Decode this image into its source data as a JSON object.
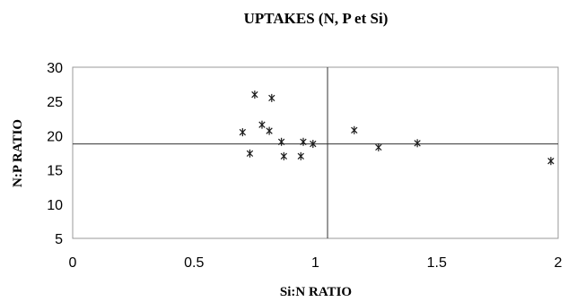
{
  "chart_data": {
    "type": "scatter",
    "title": "UPTAKES (N, P et Si)",
    "xlabel": "Si:N RATIO",
    "ylabel": "N:P RATIO",
    "xlim": [
      0,
      2
    ],
    "ylim": [
      5,
      30
    ],
    "xticks": [
      "0",
      "0.5",
      "1",
      "1.5",
      "2"
    ],
    "yticks": [
      "5",
      "10",
      "15",
      "20",
      "25",
      "30"
    ],
    "grid": false,
    "legend": "none",
    "marker": "asterisk",
    "reference_lines": {
      "x": 1.05,
      "y": 18.8
    },
    "points": [
      {
        "x": 0.7,
        "y": 20.5
      },
      {
        "x": 0.73,
        "y": 17.4
      },
      {
        "x": 0.75,
        "y": 26.0
      },
      {
        "x": 0.78,
        "y": 21.6
      },
      {
        "x": 0.81,
        "y": 20.7
      },
      {
        "x": 0.82,
        "y": 25.5
      },
      {
        "x": 0.86,
        "y": 19.1
      },
      {
        "x": 0.87,
        "y": 17.0
      },
      {
        "x": 0.94,
        "y": 17.0
      },
      {
        "x": 0.95,
        "y": 19.1
      },
      {
        "x": 0.99,
        "y": 18.8
      },
      {
        "x": 1.16,
        "y": 20.8
      },
      {
        "x": 1.26,
        "y": 18.3
      },
      {
        "x": 1.42,
        "y": 18.9
      },
      {
        "x": 1.97,
        "y": 16.3
      }
    ],
    "colors": {
      "marker": "#1a1a1a",
      "frame": "#999999",
      "reference": "#333333"
    }
  }
}
